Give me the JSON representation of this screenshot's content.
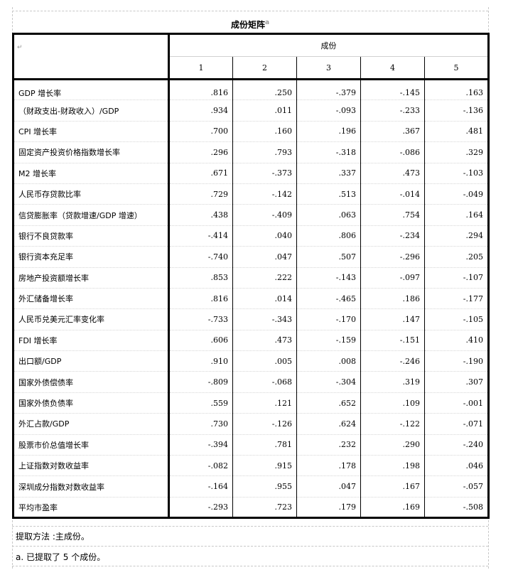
{
  "title": "成份矩阵",
  "title_footnote": "a",
  "header": {
    "component_label": "成份",
    "columns": [
      "1",
      "2",
      "3",
      "4",
      "5"
    ]
  },
  "rows": [
    {
      "label": "GDP 增长率",
      "values": [
        ".816",
        ".250",
        "-.379",
        "-.145",
        ".163"
      ]
    },
    {
      "label": "（财政支出-财政收入）/GDP",
      "values": [
        ".934",
        ".011",
        "-.093",
        "-.233",
        "-.136"
      ]
    },
    {
      "label": "CPI 增长率",
      "values": [
        ".700",
        ".160",
        ".196",
        ".367",
        ".481"
      ]
    },
    {
      "label": "固定资产投资价格指数增长率",
      "values": [
        ".296",
        ".793",
        "-.318",
        "-.086",
        ".329"
      ]
    },
    {
      "label": "M2 增长率",
      "values": [
        ".671",
        "-.373",
        ".337",
        ".473",
        "-.103"
      ]
    },
    {
      "label": "人民币存贷款比率",
      "values": [
        ".729",
        "-.142",
        ".513",
        "-.014",
        "-.049"
      ]
    },
    {
      "label": "信贷膨胀率（贷款增速/GDP 增速）",
      "values": [
        ".438",
        "-.409",
        ".063",
        ".754",
        ".164"
      ]
    },
    {
      "label": "银行不良贷款率",
      "values": [
        "-.414",
        ".040",
        ".806",
        "-.234",
        ".294"
      ]
    },
    {
      "label": "银行资本充足率",
      "values": [
        "-.740",
        ".047",
        ".507",
        "-.296",
        ".205"
      ]
    },
    {
      "label": "房地产投资额增长率",
      "values": [
        ".853",
        ".222",
        "-.143",
        "-.097",
        "-.107"
      ]
    },
    {
      "label": "外汇储备增长率",
      "values": [
        ".816",
        ".014",
        "-.465",
        ".186",
        "-.177"
      ]
    },
    {
      "label": "人民币兑美元汇率变化率",
      "values": [
        "-.733",
        "-.343",
        "-.170",
        ".147",
        "-.105"
      ]
    },
    {
      "label": "FDI 增长率",
      "values": [
        ".606",
        ".473",
        "-.159",
        "-.151",
        ".410"
      ]
    },
    {
      "label": "出口额/GDP",
      "values": [
        ".910",
        ".005",
        ".008",
        "-.246",
        "-.190"
      ]
    },
    {
      "label": "国家外债偿债率",
      "values": [
        "-.809",
        "-.068",
        "-.304",
        ".319",
        ".307"
      ]
    },
    {
      "label": "国家外债负债率",
      "values": [
        ".559",
        ".121",
        ".652",
        ".109",
        "-.001"
      ]
    },
    {
      "label": "外汇占款/GDP",
      "values": [
        ".730",
        "-.126",
        ".624",
        "-.122",
        "-.071"
      ]
    },
    {
      "label": "股票市价总值增长率",
      "values": [
        "-.394",
        ".781",
        ".232",
        ".290",
        "-.240"
      ]
    },
    {
      "label": "上证指数对数收益率",
      "values": [
        "-.082",
        ".915",
        ".178",
        ".198",
        ".046"
      ]
    },
    {
      "label": "深圳成分指数对数收益率",
      "values": [
        "-.164",
        ".955",
        ".047",
        ".167",
        "-.057"
      ]
    },
    {
      "label": "平均市盈率",
      "values": [
        "-.293",
        ".723",
        ".179",
        ".169",
        "-.508"
      ]
    }
  ],
  "notes": {
    "method": "提取方法 :主成份。",
    "extracted": "a. 已提取了 5 个成份。"
  },
  "paragraph_mark": "↵"
}
